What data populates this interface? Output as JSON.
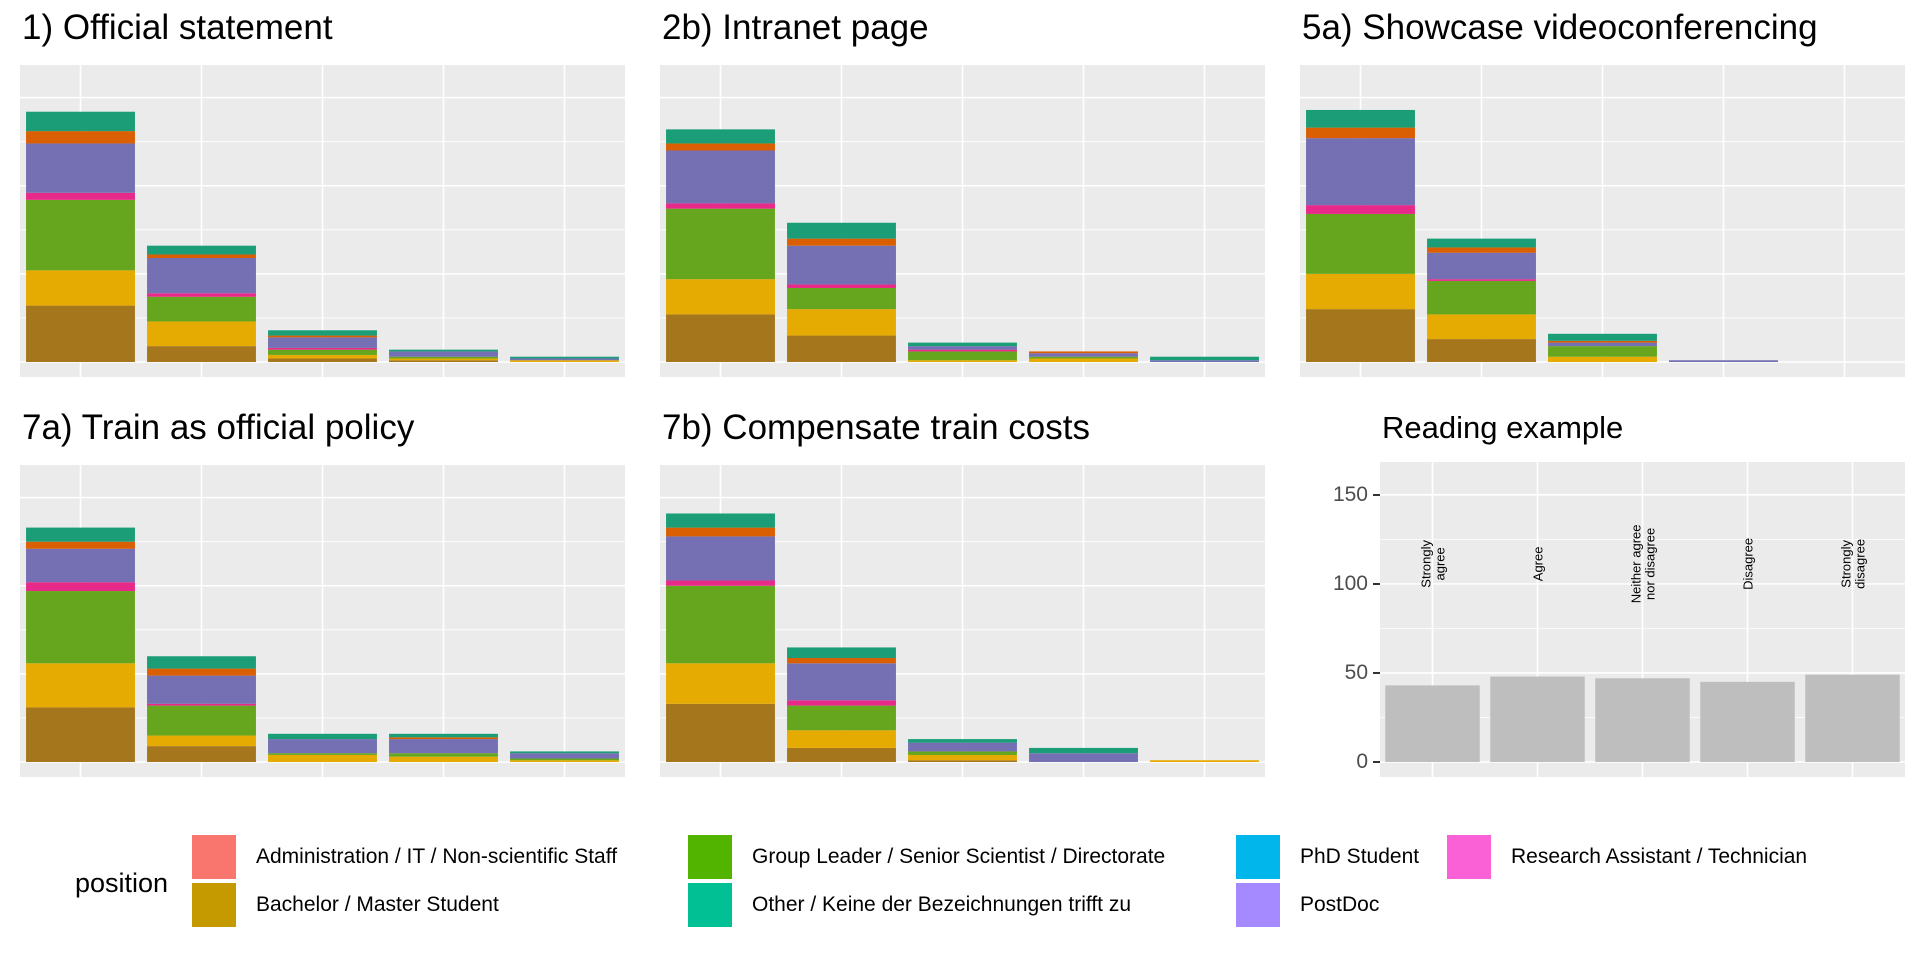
{
  "chart_data": [
    {
      "type": "bar",
      "title": "1) Official statement",
      "stacked": true,
      "categories": [
        "Strongly agree",
        "Agree",
        "Neither agree nor disagree",
        "Disagree",
        "Strongly disagree"
      ],
      "ylim": [
        0,
        160
      ],
      "series": [
        {
          "name": "Bachelor / Master Student",
          "values": [
            32,
            9,
            2,
            1,
            0
          ]
        },
        {
          "name": "Bachelor / Master Student (yellow)",
          "values": [
            20,
            14,
            2,
            1,
            1
          ]
        },
        {
          "name": "Group Leader / Senior Scientist / Directorate",
          "values": [
            40,
            14,
            3,
            1,
            0
          ]
        },
        {
          "name": "Research Assistant / Technician",
          "values": [
            4,
            2,
            1,
            0,
            0
          ]
        },
        {
          "name": "PostDoc",
          "values": [
            28,
            20,
            6,
            3,
            1
          ]
        },
        {
          "name": "Administration / IT / Non-scientific Staff",
          "values": [
            7,
            2,
            1,
            0,
            0
          ]
        },
        {
          "name": "Other / Keine der Bezeichnungen trifft zu",
          "values": [
            11,
            5,
            3,
            1,
            1
          ]
        }
      ]
    },
    {
      "type": "bar",
      "title": "2b) Intranet page",
      "stacked": true,
      "categories": [
        "Strongly agree",
        "Agree",
        "Neither agree nor disagree",
        "Disagree",
        "Strongly disagree"
      ],
      "ylim": [
        0,
        160
      ],
      "series": [
        {
          "name": "Bachelor / Master Student",
          "values": [
            27,
            15,
            0,
            0,
            0
          ]
        },
        {
          "name": "Bachelor / Master Student (yellow)",
          "values": [
            20,
            15,
            1,
            2,
            0
          ]
        },
        {
          "name": "Group Leader / Senior Scientist / Directorate",
          "values": [
            40,
            12,
            5,
            1,
            0
          ]
        },
        {
          "name": "Research Assistant / Technician",
          "values": [
            3,
            2,
            1,
            0,
            0
          ]
        },
        {
          "name": "PostDoc",
          "values": [
            30,
            22,
            2,
            2,
            1
          ]
        },
        {
          "name": "Administration / IT / Non-scientific Staff",
          "values": [
            4,
            4,
            0,
            1,
            0
          ]
        },
        {
          "name": "Other / Keine der Bezeichnungen trifft zu",
          "values": [
            8,
            9,
            2,
            0,
            2
          ]
        }
      ]
    },
    {
      "type": "bar",
      "title": "5a) Showcase videoconferencing",
      "stacked": true,
      "categories": [
        "Strongly agree",
        "Agree",
        "Neither agree nor disagree",
        "Disagree",
        "Strongly disagree"
      ],
      "ylim": [
        0,
        160
      ],
      "series": [
        {
          "name": "Bachelor / Master Student",
          "values": [
            30,
            13,
            0,
            0,
            0
          ]
        },
        {
          "name": "Bachelor / Master Student (yellow)",
          "values": [
            20,
            14,
            3,
            0,
            0
          ]
        },
        {
          "name": "Group Leader / Senior Scientist / Directorate",
          "values": [
            34,
            19,
            6,
            0,
            0
          ]
        },
        {
          "name": "Research Assistant / Technician",
          "values": [
            5,
            1,
            0,
            0,
            0
          ]
        },
        {
          "name": "PostDoc",
          "values": [
            38,
            15,
            2,
            1,
            0
          ]
        },
        {
          "name": "Administration / IT / Non-scientific Staff",
          "values": [
            6,
            3,
            1,
            0,
            0
          ]
        },
        {
          "name": "Other / Keine der Bezeichnungen trifft zu",
          "values": [
            10,
            5,
            4,
            0,
            0
          ]
        }
      ]
    },
    {
      "type": "bar",
      "title": "7a) Train as official policy",
      "stacked": true,
      "categories": [
        "Strongly agree",
        "Agree",
        "Neither agree nor disagree",
        "Disagree",
        "Strongly disagree"
      ],
      "ylim": [
        0,
        160
      ],
      "series": [
        {
          "name": "Bachelor / Master Student",
          "values": [
            31,
            9,
            0,
            0,
            0
          ]
        },
        {
          "name": "Bachelor / Master Student (yellow)",
          "values": [
            25,
            6,
            4,
            3,
            1
          ]
        },
        {
          "name": "Group Leader / Senior Scientist / Directorate",
          "values": [
            41,
            17,
            1,
            2,
            1
          ]
        },
        {
          "name": "Research Assistant / Technician",
          "values": [
            5,
            1,
            0,
            0,
            0
          ]
        },
        {
          "name": "PostDoc",
          "values": [
            19,
            16,
            8,
            8,
            3
          ]
        },
        {
          "name": "Administration / IT / Non-scientific Staff",
          "values": [
            4,
            4,
            0,
            1,
            0
          ]
        },
        {
          "name": "Other / Keine der Bezeichnungen trifft zu",
          "values": [
            8,
            7,
            3,
            2,
            1
          ]
        }
      ]
    },
    {
      "type": "bar",
      "title": "7b) Compensate train costs",
      "stacked": true,
      "categories": [
        "Strongly agree",
        "Agree",
        "Neither agree nor disagree",
        "Disagree",
        "Strongly disagree"
      ],
      "ylim": [
        0,
        160
      ],
      "series": [
        {
          "name": "Bachelor / Master Student",
          "values": [
            33,
            8,
            1,
            0,
            0
          ]
        },
        {
          "name": "Bachelor / Master Student (yellow)",
          "values": [
            23,
            10,
            3,
            0,
            1
          ]
        },
        {
          "name": "Group Leader / Senior Scientist / Directorate",
          "values": [
            44,
            14,
            2,
            0,
            0
          ]
        },
        {
          "name": "Research Assistant / Technician",
          "values": [
            3,
            3,
            0,
            0,
            0
          ]
        },
        {
          "name": "PostDoc",
          "values": [
            25,
            21,
            5,
            5,
            0
          ]
        },
        {
          "name": "Administration / IT / Non-scientific Staff",
          "values": [
            5,
            3,
            0,
            0,
            0
          ]
        },
        {
          "name": "Other / Keine der Bezeichnungen trifft zu",
          "values": [
            8,
            6,
            2,
            3,
            0
          ]
        }
      ]
    },
    {
      "type": "bar",
      "title": "Reading example",
      "categories": [
        "Strongly agree",
        "Agree",
        "Neither agree nor disagree",
        "Disagree",
        "Strongly disagree"
      ],
      "category_labels": [
        [
          "Strongly",
          "agree"
        ],
        [
          "Agree"
        ],
        [
          "Neither agree",
          "nor disagree"
        ],
        [
          "Disagree"
        ],
        [
          "Strongly",
          "disagree"
        ]
      ],
      "values": [
        43,
        48,
        47,
        45,
        49
      ],
      "ylim": [
        0,
        160
      ],
      "yticks": [
        0,
        50,
        100,
        150
      ]
    }
  ],
  "colors": {
    "brown": "#a6761d",
    "yellow": "#e6ab02",
    "green": "#66a61e",
    "magenta": "#e7298a",
    "purple": "#7570b3",
    "orange": "#d95f02",
    "teal": "#1b9e77",
    "example_bar": "#bebebe"
  },
  "legend": {
    "title": "position",
    "items": [
      {
        "label": "Administration / IT / Non-scientific Staff",
        "color": "#f8766d"
      },
      {
        "label": "Bachelor / Master Student",
        "color": "#c49a00"
      },
      {
        "label": "Group Leader / Senior Scientist / Directorate",
        "color": "#53b400"
      },
      {
        "label": "Other / Keine der Bezeichnungen trifft zu",
        "color": "#00c094"
      },
      {
        "label": "PhD Student",
        "color": "#00b6eb"
      },
      {
        "label": "PostDoc",
        "color": "#a58aff"
      },
      {
        "label": "Research Assistant / Technician",
        "color": "#fb61d7"
      }
    ]
  }
}
